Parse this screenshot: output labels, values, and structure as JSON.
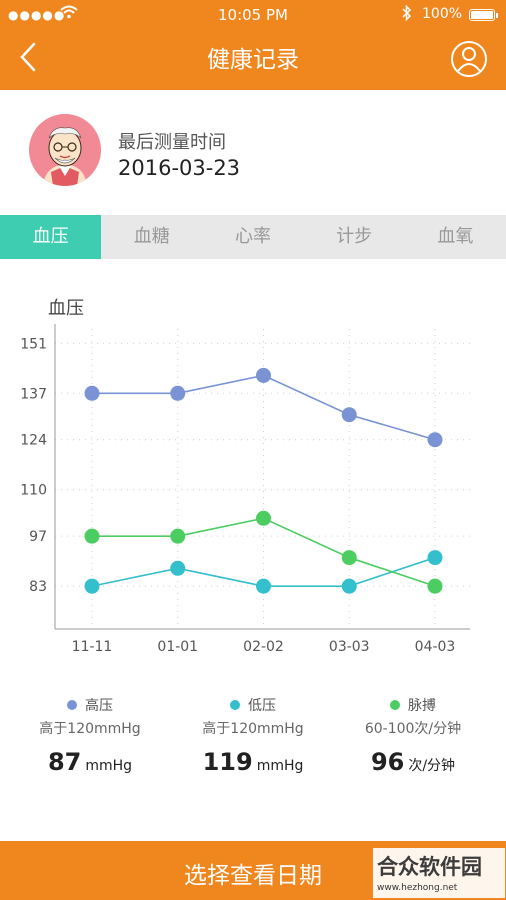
{
  "status_bar": {
    "signal": "●●●●●",
    "time": "10:05 PM",
    "battery": "100%"
  },
  "header": {
    "title": "健康记录"
  },
  "profile": {
    "last_measure_label": "最后测量时间",
    "last_measure_date": "2016-03-23"
  },
  "tabs": [
    {
      "label": "血压",
      "active": true
    },
    {
      "label": "血糖",
      "active": false
    },
    {
      "label": "心率",
      "active": false
    },
    {
      "label": "计步",
      "active": false
    },
    {
      "label": "血氧",
      "active": false
    }
  ],
  "chart_data": {
    "type": "line",
    "title": "血压",
    "categories": [
      "11-11",
      "01-01",
      "02-02",
      "03-03",
      "04-03"
    ],
    "y_ticks": [
      83,
      97,
      110,
      124,
      137,
      151
    ],
    "ylim": [
      71,
      155
    ],
    "grid": true,
    "series": [
      {
        "name": "高压",
        "color": "#7a93d4",
        "values": [
          137,
          137,
          142,
          131,
          124
        ]
      },
      {
        "name": "低压",
        "color": "#33bfcc",
        "values": [
          83,
          88,
          83,
          83,
          91
        ]
      },
      {
        "name": "脉搏",
        "color": "#4ccd62",
        "values": [
          97,
          97,
          102,
          91,
          83
        ]
      }
    ]
  },
  "legend": [
    {
      "name": "高压",
      "color": "#7a93d4",
      "range": "高于120mmHg",
      "value": "87",
      "unit": "mmHg"
    },
    {
      "name": "低压",
      "color": "#33bfcc",
      "range": "高于120mmHg",
      "value": "119",
      "unit": "mmHg"
    },
    {
      "name": "脉搏",
      "color": "#4ccd62",
      "range": "60-100次/分钟",
      "value": "96",
      "unit": "次/分钟"
    }
  ],
  "bottom_button": {
    "label": "选择查看日期"
  },
  "watermark": {
    "title": "合众软件园",
    "url": "www.hezhong.net"
  }
}
